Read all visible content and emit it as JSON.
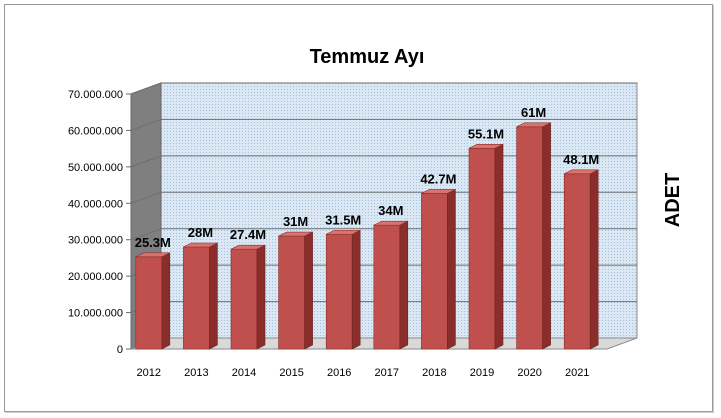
{
  "chart_data": {
    "type": "bar",
    "title": "Temmuz Ayı",
    "xlabel": "",
    "ylabel": "ADET",
    "categories": [
      "2012",
      "2013",
      "2014",
      "2015",
      "2016",
      "2017",
      "2018",
      "2019",
      "2020",
      "2021"
    ],
    "values": [
      25300000,
      28000000,
      27400000,
      31000000,
      31500000,
      34000000,
      42700000,
      55100000,
      61000000,
      48100000
    ],
    "data_labels": [
      "25.3M",
      "28M",
      "27.4M",
      "31M",
      "31.5M",
      "34M",
      "42.7M",
      "55.1M",
      "61M",
      "48.1M"
    ],
    "ylim": [
      0,
      70000000
    ],
    "y_ticks": [
      0,
      10000000,
      20000000,
      30000000,
      40000000,
      50000000,
      60000000,
      70000000
    ],
    "y_tick_labels": [
      "0",
      "10.000.000",
      "20.000.000",
      "30.000.000",
      "40.000.000",
      "50.000.000",
      "60.000.000",
      "70.000.000"
    ],
    "grid": true,
    "legend": "none",
    "style": "3d-column",
    "colors": {
      "bar": "#c0504d",
      "bar_side": "#8b2e2b",
      "bar_top": "#d9736f",
      "plot_background": "#dbe8f3",
      "pattern_dots": "#9fc3e0",
      "gridline": "#6e6e6e"
    }
  }
}
